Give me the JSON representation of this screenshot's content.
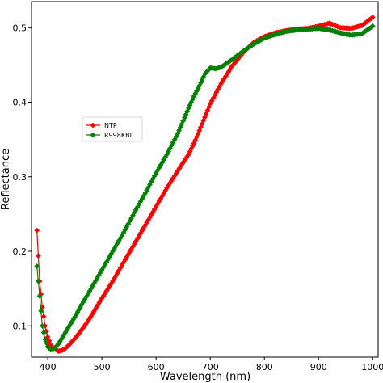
{
  "chart_data": {
    "type": "line",
    "title": "",
    "xlabel": "Wavelength (nm)",
    "ylabel": "Reflectance",
    "xlim": [
      370,
      1010
    ],
    "ylim": [
      0.058,
      0.535
    ],
    "x_ticks": [
      400,
      500,
      600,
      700,
      800,
      900,
      1000
    ],
    "y_ticks": [
      0.1,
      0.2,
      0.3,
      0.4,
      0.5
    ],
    "grid": false,
    "legend_position": "upper-left",
    "series": [
      {
        "name": "NTP",
        "color": "#ff0000",
        "marker": "diamond",
        "x": [
          380,
          385,
          390,
          395,
          400,
          405,
          410,
          420,
          430,
          440,
          450,
          460,
          470,
          480,
          490,
          500,
          520,
          540,
          560,
          580,
          600,
          620,
          640,
          660,
          670,
          680,
          690,
          700,
          720,
          740,
          760,
          780,
          800,
          820,
          840,
          860,
          880,
          900,
          920,
          940,
          960,
          980,
          1000
        ],
        "y": [
          0.228,
          0.16,
          0.125,
          0.1,
          0.085,
          0.075,
          0.07,
          0.066,
          0.068,
          0.075,
          0.083,
          0.092,
          0.102,
          0.113,
          0.125,
          0.137,
          0.16,
          0.185,
          0.21,
          0.235,
          0.26,
          0.285,
          0.308,
          0.33,
          0.345,
          0.362,
          0.38,
          0.398,
          0.425,
          0.448,
          0.466,
          0.48,
          0.488,
          0.493,
          0.496,
          0.498,
          0.499,
          0.502,
          0.506,
          0.5,
          0.499,
          0.503,
          0.514
        ]
      },
      {
        "name": "R998KBL",
        "color": "#008000",
        "marker": "diamond",
        "x": [
          380,
          385,
          390,
          395,
          400,
          405,
          410,
          420,
          430,
          440,
          450,
          460,
          480,
          500,
          520,
          540,
          560,
          580,
          600,
          620,
          640,
          650,
          660,
          670,
          680,
          690,
          700,
          710,
          720,
          740,
          760,
          780,
          800,
          820,
          840,
          860,
          880,
          900,
          920,
          940,
          960,
          980,
          1000
        ],
        "y": [
          0.18,
          0.14,
          0.1,
          0.082,
          0.072,
          0.068,
          0.068,
          0.076,
          0.088,
          0.1,
          0.112,
          0.125,
          0.15,
          0.175,
          0.2,
          0.225,
          0.252,
          0.278,
          0.305,
          0.33,
          0.358,
          0.375,
          0.392,
          0.408,
          0.422,
          0.438,
          0.446,
          0.445,
          0.447,
          0.457,
          0.468,
          0.478,
          0.486,
          0.491,
          0.495,
          0.497,
          0.498,
          0.499,
          0.497,
          0.493,
          0.49,
          0.492,
          0.502
        ]
      }
    ]
  }
}
